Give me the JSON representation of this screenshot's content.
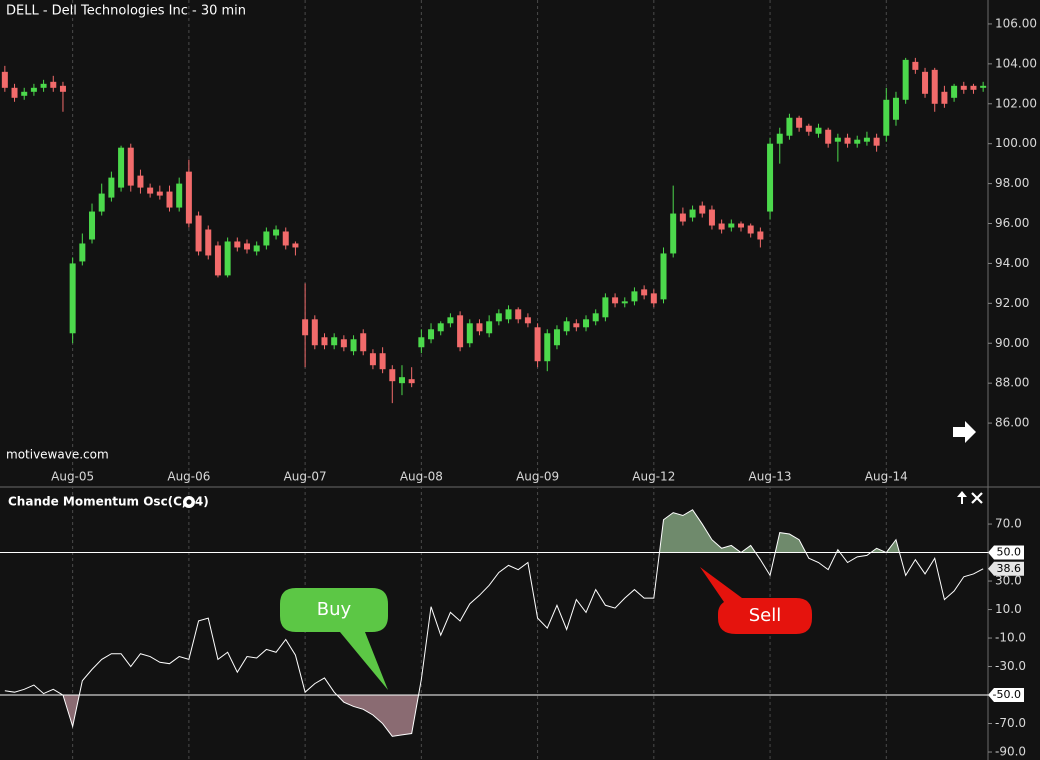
{
  "chart_data": [
    {
      "type": "candlestick",
      "title": "DELL - Dell Technologies Inc - 30 min",
      "watermark": "motivewave.com",
      "up_color": "#4cd94c",
      "down_color": "#f26b6b",
      "categories": [
        null,
        null,
        null,
        null,
        null,
        null,
        null,
        "Aug-05",
        null,
        null,
        null,
        null,
        null,
        null,
        null,
        null,
        null,
        null,
        null,
        "Aug-06",
        null,
        null,
        null,
        null,
        null,
        null,
        null,
        null,
        null,
        null,
        null,
        "Aug-07",
        null,
        null,
        null,
        null,
        null,
        null,
        null,
        null,
        null,
        null,
        null,
        "Aug-08",
        null,
        null,
        null,
        null,
        null,
        null,
        null,
        null,
        null,
        null,
        null,
        "Aug-09",
        null,
        null,
        null,
        null,
        null,
        null,
        null,
        null,
        null,
        null,
        null,
        "Aug-12",
        null,
        null,
        null,
        null,
        null,
        null,
        null,
        null,
        null,
        null,
        null,
        "Aug-13",
        null,
        null,
        null,
        null,
        null,
        null,
        null,
        null,
        null,
        null,
        null,
        "Aug-14",
        null,
        null,
        null,
        null,
        null,
        null,
        null,
        null,
        null,
        null
      ],
      "open": [
        103.6,
        102.8,
        102.4,
        102.6,
        102.8,
        103.1,
        102.9,
        90.5,
        94.1,
        95.2,
        96.6,
        97.3,
        97.8,
        99.8,
        98.4,
        97.8,
        97.6,
        97.6,
        96.8,
        98.6,
        96.4,
        95.7,
        94.9,
        93.4,
        95.1,
        95.0,
        94.6,
        94.9,
        95.4,
        95.6,
        95.0,
        91.2,
        91.2,
        90.3,
        89.9,
        90.2,
        89.6,
        90.5,
        89.5,
        89.5,
        88.7,
        88.0,
        88.2,
        89.8,
        90.2,
        90.6,
        91.0,
        91.4,
        90.0,
        91.0,
        90.5,
        91.1,
        91.2,
        91.7,
        91.3,
        90.8,
        89.1,
        89.9,
        90.6,
        91.0,
        90.8,
        91.1,
        91.3,
        92.3,
        92.0,
        92.1,
        92.7,
        92.5,
        92.2,
        94.5,
        96.5,
        96.3,
        96.9,
        96.7,
        96.0,
        95.8,
        96.0,
        95.9,
        95.6,
        96.6,
        100.0,
        100.4,
        101.3,
        100.9,
        100.5,
        100.7,
        100.1,
        100.3,
        100.0,
        100.1,
        100.3,
        100.4,
        101.2,
        102.2,
        104.1,
        103.6,
        103.7,
        102.6,
        102.3,
        102.9,
        102.9,
        102.8
      ],
      "high": [
        103.9,
        103.0,
        102.8,
        103.0,
        103.2,
        103.4,
        103.1,
        94.3,
        95.5,
        97.0,
        98.0,
        98.6,
        99.9,
        100.0,
        98.7,
        98.0,
        97.9,
        97.9,
        98.3,
        99.2,
        96.6,
        95.9,
        95.1,
        95.3,
        95.3,
        95.2,
        95.1,
        95.8,
        95.9,
        95.8,
        95.1,
        93.0,
        91.4,
        90.5,
        90.5,
        90.4,
        90.4,
        90.7,
        89.7,
        89.8,
        88.9,
        88.9,
        88.8,
        90.7,
        91.0,
        91.1,
        91.5,
        91.6,
        91.2,
        91.2,
        91.4,
        91.7,
        91.9,
        91.8,
        91.5,
        91.0,
        90.7,
        90.9,
        91.3,
        91.2,
        91.4,
        91.7,
        92.5,
        92.5,
        92.3,
        92.8,
        92.9,
        92.7,
        94.8,
        97.9,
        96.8,
        96.9,
        97.1,
        96.9,
        96.2,
        96.2,
        96.1,
        96.0,
        95.8,
        100.3,
        100.8,
        101.5,
        101.4,
        101.0,
        101.0,
        100.8,
        100.5,
        100.5,
        100.4,
        100.6,
        100.5,
        102.8,
        102.6,
        104.3,
        104.3,
        103.8,
        103.8,
        102.9,
        103.0,
        103.1,
        103.0,
        103.1
      ],
      "low": [
        102.6,
        102.1,
        102.2,
        102.4,
        102.6,
        102.6,
        101.6,
        90.0,
        93.9,
        95.0,
        96.4,
        97.1,
        97.6,
        97.6,
        97.5,
        97.3,
        97.2,
        96.6,
        96.6,
        95.8,
        94.4,
        94.2,
        93.3,
        93.3,
        94.6,
        94.5,
        94.4,
        94.7,
        95.2,
        94.7,
        94.4,
        88.8,
        89.7,
        89.7,
        89.7,
        89.6,
        89.4,
        89.4,
        88.7,
        88.5,
        87.0,
        87.4,
        87.8,
        89.5,
        90.0,
        90.4,
        90.8,
        89.6,
        89.8,
        90.4,
        90.3,
        90.9,
        91.0,
        91.0,
        90.8,
        88.8,
        88.6,
        89.7,
        90.4,
        90.6,
        90.6,
        90.9,
        91.1,
        91.8,
        91.8,
        91.9,
        92.2,
        91.8,
        92.0,
        94.3,
        95.9,
        96.1,
        96.3,
        95.7,
        95.5,
        95.6,
        95.6,
        95.3,
        94.8,
        96.2,
        99.0,
        100.2,
        100.6,
        100.4,
        100.3,
        99.8,
        99.1,
        99.8,
        99.8,
        99.9,
        99.6,
        100.1,
        100.9,
        102.0,
        103.5,
        102.3,
        101.6,
        101.8,
        102.1,
        102.5,
        102.5,
        102.6
      ],
      "close": [
        102.8,
        102.3,
        102.6,
        102.8,
        103.0,
        102.8,
        102.6,
        94.0,
        95.0,
        96.6,
        97.5,
        98.3,
        99.8,
        97.9,
        97.8,
        97.5,
        97.4,
        96.8,
        98.0,
        96.0,
        94.6,
        94.4,
        93.4,
        95.1,
        94.8,
        94.7,
        94.9,
        95.6,
        95.7,
        94.9,
        94.8,
        90.4,
        89.9,
        89.9,
        90.3,
        89.8,
        90.2,
        89.6,
        88.9,
        88.7,
        88.1,
        88.3,
        88.0,
        90.3,
        90.7,
        91.0,
        91.3,
        89.8,
        91.0,
        90.6,
        91.1,
        91.5,
        91.7,
        91.2,
        91.0,
        89.1,
        90.5,
        90.7,
        91.1,
        90.8,
        91.2,
        91.5,
        92.3,
        92.0,
        92.1,
        92.6,
        92.4,
        92.0,
        94.5,
        96.5,
        96.1,
        96.7,
        96.5,
        95.9,
        95.7,
        96.0,
        95.8,
        95.5,
        95.2,
        100.0,
        100.5,
        101.3,
        100.8,
        100.6,
        100.8,
        100.0,
        100.3,
        100.0,
        100.2,
        100.3,
        99.9,
        102.2,
        102.3,
        104.2,
        103.7,
        102.5,
        102.0,
        102.0,
        102.9,
        102.7,
        102.7,
        102.9
      ],
      "ylim": [
        84,
        107.2
      ],
      "yticks": [
        {
          "value": 86,
          "label": "86.00"
        },
        {
          "value": 88,
          "label": "88.00"
        },
        {
          "value": 90,
          "label": "90.00"
        },
        {
          "value": 92,
          "label": "92.00"
        },
        {
          "value": 94,
          "label": "94.00"
        },
        {
          "value": 96,
          "label": "96.00"
        },
        {
          "value": 98,
          "label": "98.00"
        },
        {
          "value": 100,
          "label": "100.00"
        },
        {
          "value": 102,
          "label": "102.00"
        },
        {
          "value": 104,
          "label": "104.00"
        },
        {
          "value": 106,
          "label": "106.00"
        }
      ]
    },
    {
      "type": "line",
      "title": "Chande Momentum Osc(C,14)",
      "color": "#ffffff",
      "values": [
        -47,
        -48,
        -46,
        -43,
        -49,
        -46,
        -50,
        -72,
        -40,
        -32,
        -25,
        -21,
        -21,
        -30,
        -21,
        -23,
        -27,
        -28,
        -23,
        -25,
        2,
        4,
        -25,
        -20,
        -34,
        -23,
        -24,
        -18,
        -20,
        -11,
        -22,
        -48,
        -42,
        -38,
        -48,
        -55,
        -58,
        -60,
        -64,
        -70,
        -79,
        -78,
        -77,
        -39,
        12,
        -8,
        8,
        2,
        14,
        20,
        27,
        36,
        41,
        38,
        43,
        4,
        -3,
        13,
        -4,
        17,
        8,
        24,
        13,
        11,
        18,
        24,
        18,
        18,
        73,
        78,
        76,
        80,
        70,
        59,
        53,
        55,
        50,
        55,
        45,
        34,
        64,
        63,
        59,
        46,
        43,
        38,
        52,
        43,
        47,
        48,
        53,
        50,
        59,
        34,
        45,
        35,
        46,
        17,
        23,
        33,
        35,
        38.6
      ],
      "levels": [
        {
          "value": 50,
          "label": "50.0"
        },
        {
          "value": -50,
          "label": "-50.0"
        }
      ],
      "fill_above_color": "#6f8a6c",
      "fill_below_color": "#8a6b72",
      "ylim": [
        -95.6,
        93.9
      ],
      "yticks": [
        {
          "value": 70,
          "label": "70.0"
        },
        {
          "value": 30,
          "label": "30.0"
        },
        {
          "value": 10,
          "label": "10.0"
        },
        {
          "value": -10,
          "label": "-10.0"
        },
        {
          "value": -30,
          "label": "-30.0"
        },
        {
          "value": -70,
          "label": "-70.0"
        },
        {
          "value": -90,
          "label": "-90.0"
        }
      ],
      "annotations": [
        {
          "text": "Buy",
          "color": "#5cc745"
        },
        {
          "text": "Sell",
          "color": "#e5130d"
        }
      ]
    }
  ]
}
